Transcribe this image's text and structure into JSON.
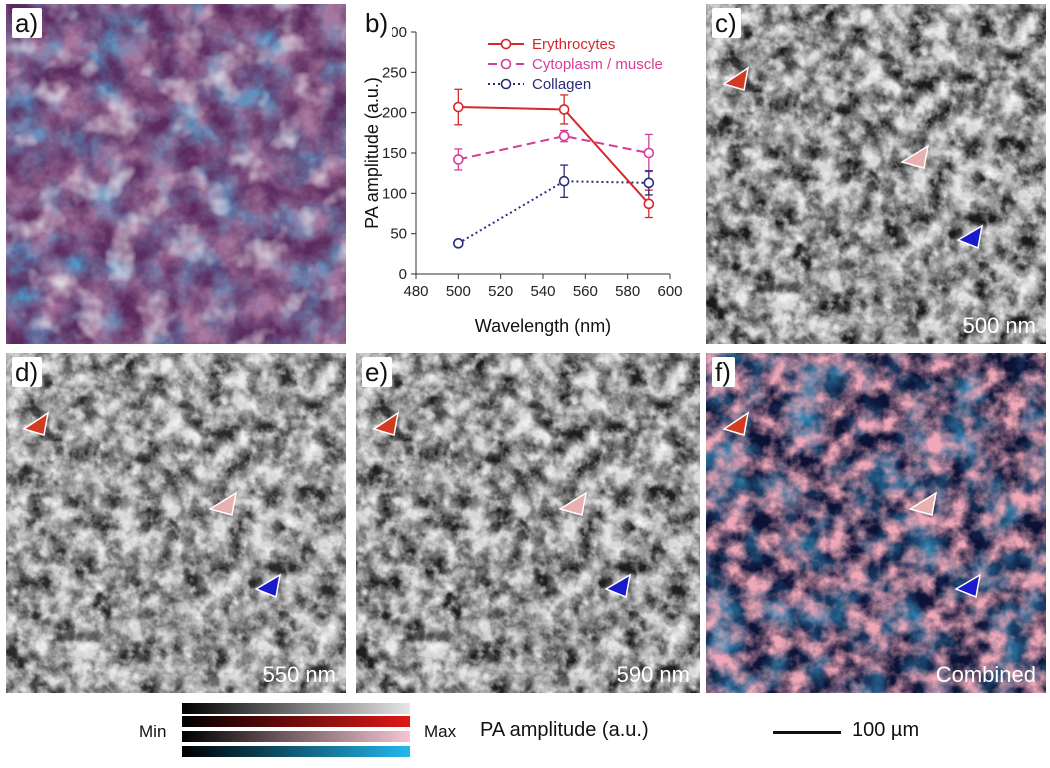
{
  "panels": {
    "a": {
      "label": "a)"
    },
    "b": {
      "label": "b)"
    },
    "c": {
      "label": "c)",
      "wavelength": "500 nm"
    },
    "d": {
      "label": "d)",
      "wavelength": "550 nm"
    },
    "e": {
      "label": "e)",
      "wavelength": "590 nm"
    },
    "f": {
      "label": "f)",
      "wavelength": "Combined"
    }
  },
  "chart_data": {
    "type": "line",
    "x": [
      500,
      550,
      590
    ],
    "xlim": [
      480,
      600
    ],
    "ylim": [
      0,
      300
    ],
    "xticks": [
      480,
      500,
      520,
      540,
      560,
      580,
      600
    ],
    "yticks": [
      0,
      50,
      100,
      150,
      200,
      250,
      300
    ],
    "xlabel": "Wavelength (nm)",
    "ylabel": "PA amplitude (a.u.)",
    "legend_position": "top-right",
    "series": [
      {
        "name": "Erythrocytes",
        "color": "#d4282b",
        "dash": "solid",
        "values": [
          207,
          204,
          87
        ],
        "errors": [
          22,
          18,
          17
        ]
      },
      {
        "name": "Cytoplasm / muscle",
        "color": "#d63d98",
        "dash": "dashed",
        "values": [
          142,
          171,
          150
        ],
        "errors": [
          13,
          7,
          23
        ]
      },
      {
        "name": "Collagen",
        "color": "#2b2b7a",
        "dash": "dotted",
        "values": [
          38,
          115,
          113
        ],
        "errors": [
          4,
          20,
          15
        ]
      }
    ]
  },
  "colorbar": {
    "min_label": "Min",
    "max_label": "Max",
    "title": "PA amplitude (a.u.)",
    "rows": [
      {
        "name": "gray",
        "color": "#e6e6e6"
      },
      {
        "name": "red",
        "color": "#e01818"
      },
      {
        "name": "pink",
        "color": "#f5c6d2"
      },
      {
        "name": "cyan",
        "color": "#22b8ee"
      }
    ]
  },
  "scalebar": {
    "label": "100 µm"
  },
  "arrows": {
    "erythrocyte": "#d23a22",
    "cytoplasm": "#e8b0b0",
    "collagen": "#1a1acc"
  }
}
